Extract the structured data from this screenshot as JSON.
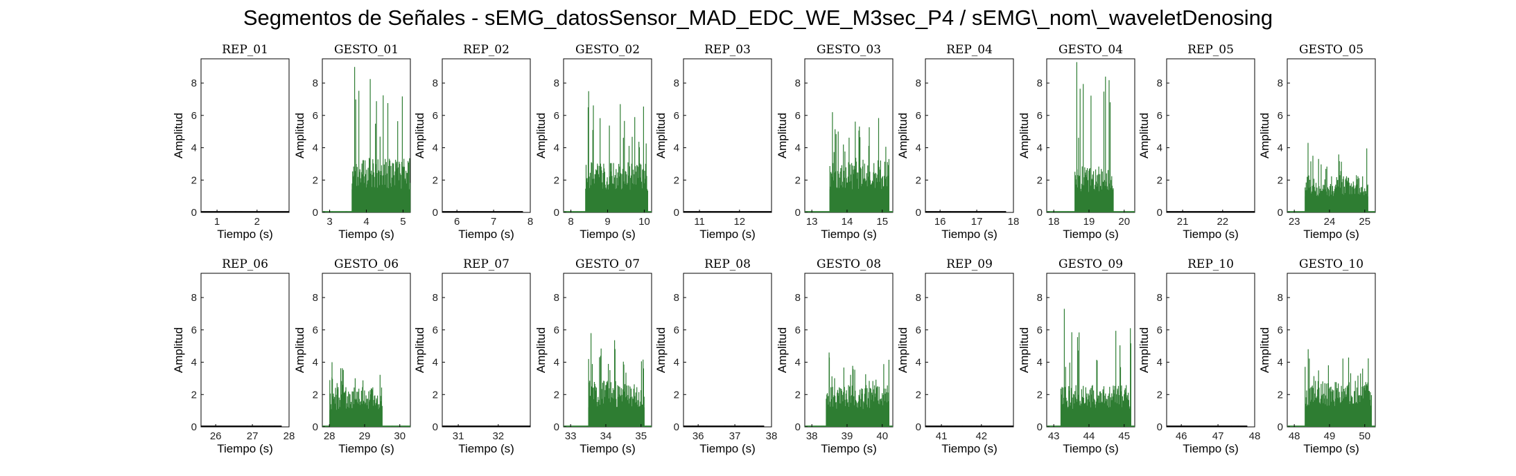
{
  "figure": {
    "title": "Segmentos de Señales - sEMG_datosSensor_MAD_EDC_WE_M3sec_P4 / sEMG\\_nom\\_waveletDenosing"
  },
  "colors": {
    "rep": "#000000",
    "gesto": "#2e7d32",
    "axes": "#000000"
  },
  "chart_data": [
    {
      "type": "area",
      "title": "REP_01",
      "xlabel": "Tiempo (s)",
      "ylabel": "Amplitud",
      "xlim": [
        0.6,
        2.8
      ],
      "ylim": [
        0,
        9.5
      ],
      "xticks": [
        1,
        2
      ],
      "yticks": [
        0,
        2,
        4,
        6,
        8
      ],
      "series": [
        {
          "name": "",
          "x": [
            0.6,
            2.8
          ],
          "baseline": 0.05,
          "burst": null
        }
      ]
    },
    {
      "type": "area",
      "title": "GESTO_01",
      "xlabel": "Tiempo (s)",
      "ylabel": "Amplitud",
      "xlim": [
        2.8,
        5.2
      ],
      "ylim": [
        0,
        9.5
      ],
      "xticks": [
        3,
        4,
        5
      ],
      "yticks": [
        0,
        2,
        4,
        6,
        8
      ],
      "series": [
        {
          "name": "",
          "x": [
            2.8,
            5.2
          ],
          "baseline": 0.05,
          "burst": {
            "start": 3.6,
            "end": 5.2,
            "typical": 2.6,
            "peak": 9.0
          }
        }
      ]
    },
    {
      "type": "area",
      "title": "REP_02",
      "xlabel": "Tiempo (s)",
      "ylabel": "Amplitud",
      "xlim": [
        5.6,
        8.0
      ],
      "ylim": [
        0,
        9.5
      ],
      "xticks": [
        6,
        7,
        8
      ],
      "yticks": [
        0,
        2,
        4,
        6,
        8
      ],
      "series": [
        {
          "name": "",
          "x": [
            5.6,
            7.8
          ],
          "baseline": 0.05,
          "burst": null
        }
      ]
    },
    {
      "type": "area",
      "title": "GESTO_02",
      "xlabel": "Tiempo (s)",
      "ylabel": "Amplitud",
      "xlim": [
        7.8,
        10.2
      ],
      "ylim": [
        0,
        9.5
      ],
      "xticks": [
        8,
        9,
        10
      ],
      "yticks": [
        0,
        2,
        4,
        6,
        8
      ],
      "series": [
        {
          "name": "",
          "x": [
            7.8,
            10.2
          ],
          "baseline": 0.05,
          "burst": {
            "start": 8.4,
            "end": 10.1,
            "typical": 2.4,
            "peak": 7.5
          }
        }
      ]
    },
    {
      "type": "area",
      "title": "REP_03",
      "xlabel": "Tiempo (s)",
      "ylabel": "Amplitud",
      "xlim": [
        10.6,
        12.8
      ],
      "ylim": [
        0,
        9.5
      ],
      "xticks": [
        11,
        12
      ],
      "yticks": [
        0,
        2,
        4,
        6,
        8
      ],
      "series": [
        {
          "name": "",
          "x": [
            10.6,
            12.8
          ],
          "baseline": 0.05,
          "burst": null
        }
      ]
    },
    {
      "type": "area",
      "title": "GESTO_03",
      "xlabel": "Tiempo (s)",
      "ylabel": "Amplitud",
      "xlim": [
        12.8,
        15.3
      ],
      "ylim": [
        0,
        9.5
      ],
      "xticks": [
        13,
        14,
        15
      ],
      "yticks": [
        0,
        2,
        4,
        6,
        8
      ],
      "series": [
        {
          "name": "",
          "x": [
            12.8,
            15.3
          ],
          "baseline": 0.05,
          "burst": {
            "start": 13.5,
            "end": 15.2,
            "typical": 2.6,
            "peak": 6.2
          }
        }
      ]
    },
    {
      "type": "area",
      "title": "REP_04",
      "xlabel": "Tiempo (s)",
      "ylabel": "Amplitud",
      "xlim": [
        15.6,
        18.0
      ],
      "ylim": [
        0,
        9.5
      ],
      "xticks": [
        16,
        17,
        18
      ],
      "yticks": [
        0,
        2,
        4,
        6,
        8
      ],
      "series": [
        {
          "name": "",
          "x": [
            15.6,
            17.8
          ],
          "baseline": 0.05,
          "burst": null
        }
      ]
    },
    {
      "type": "area",
      "title": "GESTO_04",
      "xlabel": "Tiempo (s)",
      "ylabel": "Amplitud",
      "xlim": [
        17.8,
        20.3
      ],
      "ylim": [
        0,
        9.5
      ],
      "xticks": [
        18,
        19,
        20
      ],
      "yticks": [
        0,
        2,
        4,
        6,
        8
      ],
      "series": [
        {
          "name": "",
          "x": [
            17.8,
            20.3
          ],
          "baseline": 0.05,
          "burst": {
            "start": 18.6,
            "end": 19.7,
            "typical": 2.2,
            "peak": 9.3
          }
        }
      ]
    },
    {
      "type": "area",
      "title": "REP_05",
      "xlabel": "Tiempo (s)",
      "ylabel": "Amplitud",
      "xlim": [
        20.6,
        22.8
      ],
      "ylim": [
        0,
        9.5
      ],
      "xticks": [
        21,
        22
      ],
      "yticks": [
        0,
        2,
        4,
        6,
        8
      ],
      "series": [
        {
          "name": "",
          "x": [
            20.6,
            22.8
          ],
          "baseline": 0.05,
          "burst": null
        }
      ]
    },
    {
      "type": "area",
      "title": "GESTO_05",
      "xlabel": "Tiempo (s)",
      "ylabel": "Amplitud",
      "xlim": [
        22.8,
        25.3
      ],
      "ylim": [
        0,
        9.5
      ],
      "xticks": [
        23,
        24,
        25
      ],
      "yticks": [
        0,
        2,
        4,
        6,
        8
      ],
      "series": [
        {
          "name": "",
          "x": [
            22.8,
            25.3
          ],
          "baseline": 0.05,
          "burst": {
            "start": 23.3,
            "end": 25.1,
            "typical": 1.8,
            "peak": 4.3
          }
        }
      ]
    },
    {
      "type": "area",
      "title": "REP_06",
      "xlabel": "Tiempo (s)",
      "ylabel": "Amplitud",
      "xlim": [
        25.6,
        28.0
      ],
      "ylim": [
        0,
        9.5
      ],
      "xticks": [
        26,
        27,
        28
      ],
      "yticks": [
        0,
        2,
        4,
        6,
        8
      ],
      "series": [
        {
          "name": "",
          "x": [
            25.6,
            27.8
          ],
          "baseline": 0.05,
          "burst": null
        }
      ]
    },
    {
      "type": "area",
      "title": "GESTO_06",
      "xlabel": "Tiempo (s)",
      "ylabel": "Amplitud",
      "xlim": [
        27.8,
        30.3
      ],
      "ylim": [
        0,
        9.5
      ],
      "xticks": [
        28,
        29,
        30
      ],
      "yticks": [
        0,
        2,
        4,
        6,
        8
      ],
      "series": [
        {
          "name": "",
          "x": [
            27.8,
            30.3
          ],
          "baseline": 0.05,
          "burst": {
            "start": 28.0,
            "end": 29.5,
            "typical": 1.9,
            "peak": 4.0
          }
        }
      ]
    },
    {
      "type": "area",
      "title": "REP_07",
      "xlabel": "Tiempo (s)",
      "ylabel": "Amplitud",
      "xlim": [
        30.6,
        32.8
      ],
      "ylim": [
        0,
        9.5
      ],
      "xticks": [
        31,
        32
      ],
      "yticks": [
        0,
        2,
        4,
        6,
        8
      ],
      "series": [
        {
          "name": "",
          "x": [
            30.6,
            32.8
          ],
          "baseline": 0.05,
          "burst": null
        }
      ]
    },
    {
      "type": "area",
      "title": "GESTO_07",
      "xlabel": "Tiempo (s)",
      "ylabel": "Amplitud",
      "xlim": [
        32.8,
        35.3
      ],
      "ylim": [
        0,
        9.5
      ],
      "xticks": [
        33,
        34,
        35
      ],
      "yticks": [
        0,
        2,
        4,
        6,
        8
      ],
      "series": [
        {
          "name": "",
          "x": [
            32.8,
            35.3
          ],
          "baseline": 0.05,
          "burst": {
            "start": 33.5,
            "end": 35.1,
            "typical": 2.2,
            "peak": 5.8
          }
        }
      ]
    },
    {
      "type": "area",
      "title": "REP_08",
      "xlabel": "Tiempo (s)",
      "ylabel": "Amplitud",
      "xlim": [
        35.6,
        38.0
      ],
      "ylim": [
        0,
        9.5
      ],
      "xticks": [
        36,
        37,
        38
      ],
      "yticks": [
        0,
        2,
        4,
        6,
        8
      ],
      "series": [
        {
          "name": "",
          "x": [
            35.6,
            37.8
          ],
          "baseline": 0.05,
          "burst": null
        }
      ]
    },
    {
      "type": "area",
      "title": "GESTO_08",
      "xlabel": "Tiempo (s)",
      "ylabel": "Amplitud",
      "xlim": [
        37.8,
        40.3
      ],
      "ylim": [
        0,
        9.5
      ],
      "xticks": [
        38,
        39,
        40
      ],
      "yticks": [
        0,
        2,
        4,
        6,
        8
      ],
      "series": [
        {
          "name": "",
          "x": [
            37.8,
            40.3
          ],
          "baseline": 0.05,
          "burst": {
            "start": 38.4,
            "end": 40.2,
            "typical": 2.0,
            "peak": 4.6
          }
        }
      ]
    },
    {
      "type": "area",
      "title": "REP_09",
      "xlabel": "Tiempo (s)",
      "ylabel": "Amplitud",
      "xlim": [
        40.6,
        42.8
      ],
      "ylim": [
        0,
        9.5
      ],
      "xticks": [
        41,
        42
      ],
      "yticks": [
        0,
        2,
        4,
        6,
        8
      ],
      "series": [
        {
          "name": "",
          "x": [
            40.6,
            42.8
          ],
          "baseline": 0.05,
          "burst": null
        }
      ]
    },
    {
      "type": "area",
      "title": "GESTO_09",
      "xlabel": "Tiempo (s)",
      "ylabel": "Amplitud",
      "xlim": [
        42.8,
        45.3
      ],
      "ylim": [
        0,
        9.5
      ],
      "xticks": [
        43,
        44,
        45
      ],
      "yticks": [
        0,
        2,
        4,
        6,
        8
      ],
      "series": [
        {
          "name": "",
          "x": [
            42.8,
            45.3
          ],
          "baseline": 0.05,
          "burst": {
            "start": 43.2,
            "end": 45.2,
            "typical": 2.0,
            "peak": 7.3
          }
        }
      ]
    },
    {
      "type": "area",
      "title": "REP_10",
      "xlabel": "Tiempo (s)",
      "ylabel": "Amplitud",
      "xlim": [
        45.6,
        48.0
      ],
      "ylim": [
        0,
        9.5
      ],
      "xticks": [
        46,
        47,
        48
      ],
      "yticks": [
        0,
        2,
        4,
        6,
        8
      ],
      "series": [
        {
          "name": "",
          "x": [
            45.6,
            47.8
          ],
          "baseline": 0.05,
          "burst": null
        }
      ]
    },
    {
      "type": "area",
      "title": "GESTO_10",
      "xlabel": "Tiempo (s)",
      "ylabel": "Amplitud",
      "xlim": [
        47.8,
        50.3
      ],
      "ylim": [
        0,
        9.5
      ],
      "xticks": [
        48,
        49,
        50
      ],
      "yticks": [
        0,
        2,
        4,
        6,
        8
      ],
      "series": [
        {
          "name": "",
          "x": [
            47.8,
            50.3
          ],
          "baseline": 0.05,
          "burst": {
            "start": 48.3,
            "end": 50.2,
            "typical": 2.2,
            "peak": 4.8
          }
        }
      ]
    }
  ]
}
